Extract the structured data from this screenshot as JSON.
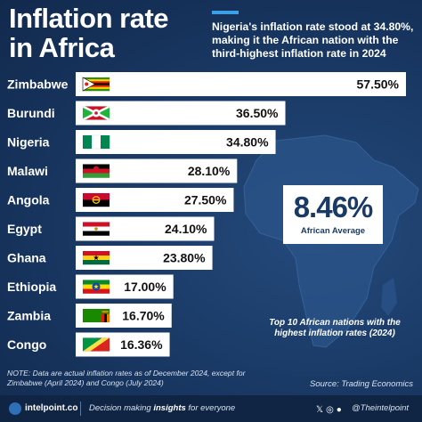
{
  "header": {
    "title_line1": "Inflation rate",
    "title_line2": "in Africa",
    "subtitle": "Nigeria's inflation rate stood at 34.80%, making it the African nation with the third-highest inflation rate in 2024"
  },
  "chart_data": {
    "type": "bar",
    "orientation": "horizontal",
    "categories": [
      "Zimbabwe",
      "Burundi",
      "Nigeria",
      "Malawi",
      "Angola",
      "Egypt",
      "Ghana",
      "Ethiopia",
      "Zambia",
      "Congo"
    ],
    "values": [
      57.5,
      36.5,
      34.8,
      28.1,
      27.5,
      24.1,
      23.8,
      17.0,
      16.7,
      16.36
    ],
    "data_labels": [
      "57.50%",
      "36.50%",
      "34.80%",
      "28.10%",
      "27.50%",
      "24.10%",
      "23.80%",
      "17.00%",
      "16.70%",
      "16.36%"
    ],
    "xlim": [
      0,
      57.5
    ],
    "grid": false,
    "legend": "none"
  },
  "flags": [
    "zimbabwe-flag-icon",
    "burundi-flag-icon",
    "nigeria-flag-icon",
    "malawi-flag-icon",
    "angola-flag-icon",
    "egypt-flag-icon",
    "ghana-flag-icon",
    "ethiopia-flag-icon",
    "zambia-flag-icon",
    "congo-flag-icon"
  ],
  "average": {
    "value": "8.46%",
    "label": "African Average"
  },
  "caption": "Top 10 African nations with the highest inflation rates (2024)",
  "note": "NOTE: Data are actual inflation rates as of December 2024, except for Zimbabwe (April 2024) and Congo (July 2024)",
  "source": "Source:  Trading Economics",
  "footer": {
    "brand": "intelpoint.co",
    "tagline_pre": "Decision making ",
    "tagline_bold": "insights",
    "tagline_post": " for everyone",
    "handle": "@Theintelpoint"
  },
  "colors": {
    "background": "#1a3a66",
    "bar": "#ffffff",
    "accent": "#3aa0e8"
  }
}
